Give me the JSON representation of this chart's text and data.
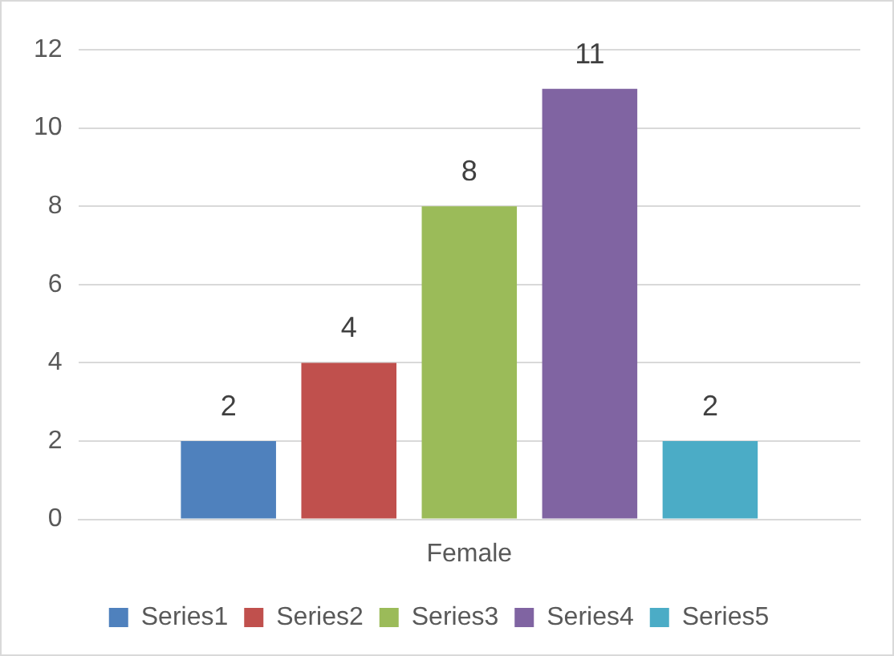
{
  "chart_data": {
    "type": "bar",
    "categories": [
      "Female"
    ],
    "series": [
      {
        "name": "Series1",
        "color": "#4f81bd",
        "values": [
          2
        ]
      },
      {
        "name": "Series2",
        "color": "#c0504d",
        "values": [
          4
        ]
      },
      {
        "name": "Series3",
        "color": "#9bbb59",
        "values": [
          8
        ]
      },
      {
        "name": "Series4",
        "color": "#8064a2",
        "values": [
          11
        ]
      },
      {
        "name": "Series5",
        "color": "#4bacc6",
        "values": [
          2
        ]
      }
    ],
    "data_labels": true,
    "ylim": [
      0,
      12
    ],
    "yticks": [
      0,
      2,
      4,
      6,
      8,
      10,
      12
    ],
    "grid": "y",
    "legend": "bottom"
  }
}
